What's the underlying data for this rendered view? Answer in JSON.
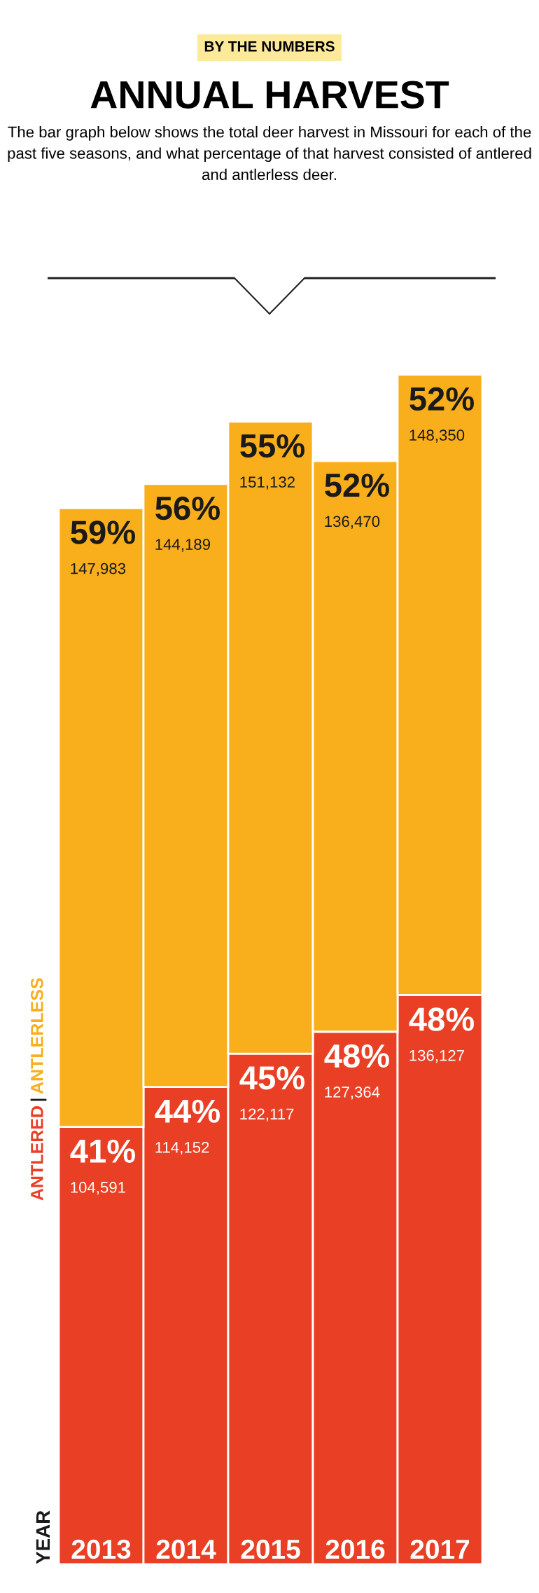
{
  "chart_data": {
    "type": "bar",
    "stacked": true,
    "title": "ANNUAL HARVEST",
    "subtitle": "The bar graph below shows the total deer harvest in Missouri for each of the past five seasons, and what percentage of that harvest consisted of antlered and antlerless deer.",
    "annotations": [
      "BY THE NUMBERS",
      "YEAR"
    ],
    "categories": [
      "2013",
      "2014",
      "2015",
      "2016",
      "2017"
    ],
    "series": [
      {
        "name": "ANTLERED",
        "color": "#e94025",
        "values": [
          104591,
          114152,
          122117,
          127364,
          136127
        ],
        "value_labels": [
          "41%\n104,591",
          "44%\n114,152",
          "45%\n122,117",
          "48%\n127,364",
          "48%\n136,127"
        ]
      },
      {
        "name": "ANTLERLESS",
        "color": "#f9ae1c",
        "values": [
          147983,
          144189,
          151132,
          136470,
          148350
        ],
        "value_labels": [
          "59%\n147,983",
          "56%\n144,189",
          "55%\n151,132",
          "52%\n136,470",
          "52%\n148,350"
        ]
      }
    ],
    "legend": "left"
  }
}
